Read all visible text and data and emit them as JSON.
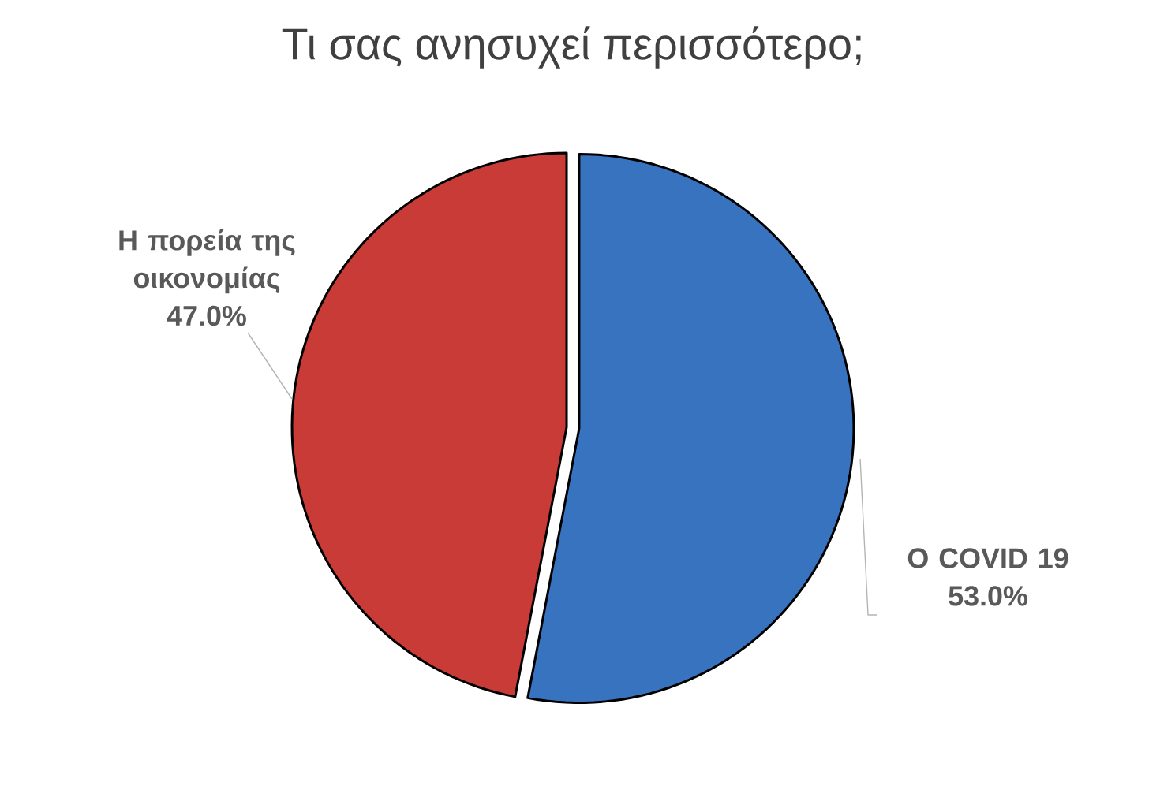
{
  "chart_data": {
    "type": "pie",
    "title": "Τι σας ανησυχεί περισσότερο;",
    "categories": [
      "Ο COVID 19",
      "Η πορεία της οικονομίας"
    ],
    "values": [
      53.0,
      47.0
    ],
    "colors": [
      "#3873c0",
      "#c83b37"
    ],
    "value_labels": [
      "53.0%",
      "47.0%"
    ]
  }
}
